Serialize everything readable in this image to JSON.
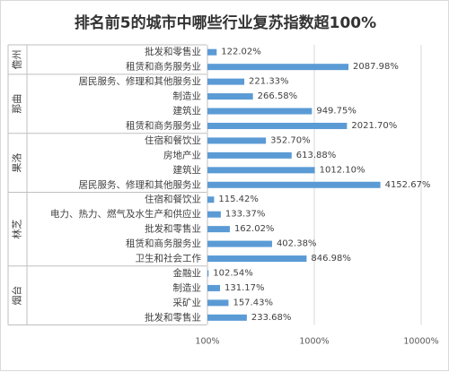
{
  "chart_data": {
    "type": "bar",
    "orientation": "horizontal",
    "title": "排名前5的城市中哪些行业复苏指数超100%",
    "x_scale": "log",
    "xlim": [
      1,
      1000
    ],
    "x_ticks": [
      "100%",
      "1000%",
      "10000%"
    ],
    "grid": true,
    "bar_color": "#5b9bd5",
    "groups": [
      {
        "name": "儋州",
        "items": [
          {
            "label": "批发和零售业",
            "value": 122.02,
            "value_label": "122.02%"
          },
          {
            "label": "租赁和商务服务业",
            "value": 2087.98,
            "value_label": "2087.98%"
          }
        ]
      },
      {
        "name": "那曲",
        "items": [
          {
            "label": "居民服务、修理和其他服务业",
            "value": 221.33,
            "value_label": "221.33%"
          },
          {
            "label": "制造业",
            "value": 266.58,
            "value_label": "266.58%"
          },
          {
            "label": "建筑业",
            "value": 949.75,
            "value_label": "949.75%"
          },
          {
            "label": "租赁和商务服务业",
            "value": 2021.7,
            "value_label": "2021.70%"
          }
        ]
      },
      {
        "name": "果洛",
        "items": [
          {
            "label": "住宿和餐饮业",
            "value": 352.7,
            "value_label": "352.70%"
          },
          {
            "label": "房地产业",
            "value": 613.88,
            "value_label": "613.88%"
          },
          {
            "label": "建筑业",
            "value": 1012.1,
            "value_label": "1012.10%"
          },
          {
            "label": "居民服务、修理和其他服务业",
            "value": 4152.67,
            "value_label": "4152.67%"
          }
        ]
      },
      {
        "name": "林芝",
        "items": [
          {
            "label": "住宿和餐饮业",
            "value": 115.42,
            "value_label": "115.42%"
          },
          {
            "label": "电力、热力、燃气及水生产和供应业",
            "value": 133.37,
            "value_label": "133.37%"
          },
          {
            "label": "批发和零售业",
            "value": 162.02,
            "value_label": "162.02%"
          },
          {
            "label": "租赁和商务服务业",
            "value": 402.38,
            "value_label": "402.38%"
          },
          {
            "label": "卫生和社会工作",
            "value": 846.98,
            "value_label": "846.98%"
          }
        ]
      },
      {
        "name": "烟台",
        "items": [
          {
            "label": "金融业",
            "value": 102.54,
            "value_label": "102.54%"
          },
          {
            "label": "制造业",
            "value": 131.17,
            "value_label": "131.17%"
          },
          {
            "label": "采矿业",
            "value": 157.43,
            "value_label": "157.43%"
          },
          {
            "label": "批发和零售业",
            "value": 233.68,
            "value_label": "233.68%"
          }
        ]
      }
    ]
  }
}
